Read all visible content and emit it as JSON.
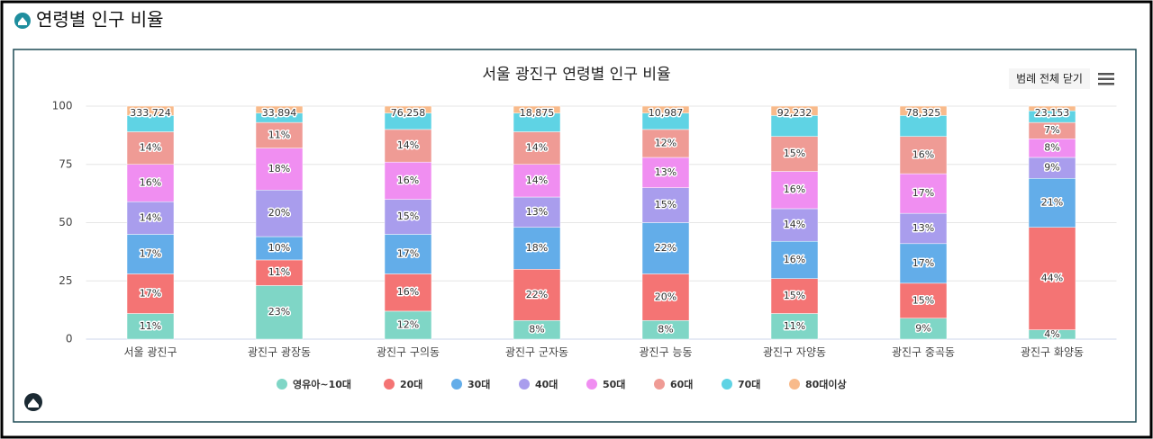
{
  "page_title": "연령별 인구 비율",
  "legend_button": "범례 전체 닫기",
  "chart_data": {
    "type": "stacked_bar",
    "title": "서울 광진구 연령별 인구 비율",
    "categories": [
      "서울 광진구",
      "광진구 광장동",
      "광진구 구의동",
      "광진구 군자동",
      "광진구 능동",
      "광진구 자양동",
      "광진구 중곡동",
      "광진구 화양동"
    ],
    "ylim": [
      0,
      100
    ],
    "yticks": [
      0,
      25,
      50,
      75,
      100
    ],
    "grid": true,
    "legend": "bottom",
    "series": [
      {
        "name": "영유아~10대",
        "color": "#7fd6c6",
        "values": [
          11,
          23,
          12,
          8,
          8,
          11,
          9,
          4
        ],
        "value_labels": [
          "11%",
          "23%",
          "12%",
          "8%",
          "8%",
          "11%",
          "9%",
          "4%"
        ]
      },
      {
        "name": "20대",
        "color": "#f47474",
        "values": [
          17,
          11,
          16,
          22,
          20,
          15,
          15,
          44
        ],
        "value_labels": [
          "17%",
          "11%",
          "16%",
          "22%",
          "20%",
          "15%",
          "15%",
          "44%"
        ]
      },
      {
        "name": "30대",
        "color": "#63ade9",
        "values": [
          17,
          10,
          17,
          18,
          22,
          16,
          17,
          21
        ],
        "value_labels": [
          "17%",
          "10%",
          "17%",
          "18%",
          "22%",
          "16%",
          "17%",
          "21%"
        ]
      },
      {
        "name": "40대",
        "color": "#a99ded",
        "values": [
          14,
          20,
          15,
          13,
          15,
          14,
          13,
          9
        ],
        "value_labels": [
          "14%",
          "20%",
          "15%",
          "13%",
          "15%",
          "14%",
          "13%",
          "9%"
        ]
      },
      {
        "name": "50대",
        "color": "#f08ef1",
        "values": [
          16,
          18,
          16,
          14,
          13,
          16,
          17,
          8
        ],
        "value_labels": [
          "16%",
          "18%",
          "16%",
          "14%",
          "13%",
          "16%",
          "17%",
          "8%"
        ]
      },
      {
        "name": "60대",
        "color": "#ef9b95",
        "values": [
          14,
          11,
          14,
          14,
          12,
          15,
          16,
          7
        ],
        "value_labels": [
          "14%",
          "11%",
          "14%",
          "14%",
          "12%",
          "15%",
          "16%",
          "7%"
        ]
      },
      {
        "name": "70대",
        "color": "#5fd3e4",
        "values": [
          7,
          4,
          7,
          8,
          7,
          9,
          9,
          5
        ]
      },
      {
        "name": "80대이상",
        "color": "#f8ba8b",
        "values": [
          4,
          3,
          3,
          3,
          3,
          4,
          4,
          2
        ]
      }
    ],
    "totals": {
      "values": [
        333724,
        33894,
        76258,
        18875,
        10987,
        92232,
        78325,
        23153
      ],
      "value_labels": [
        "333,724",
        "33,894",
        "76,258",
        "18,875",
        "10,987",
        "92,232",
        "78,325",
        "23,153"
      ]
    }
  }
}
